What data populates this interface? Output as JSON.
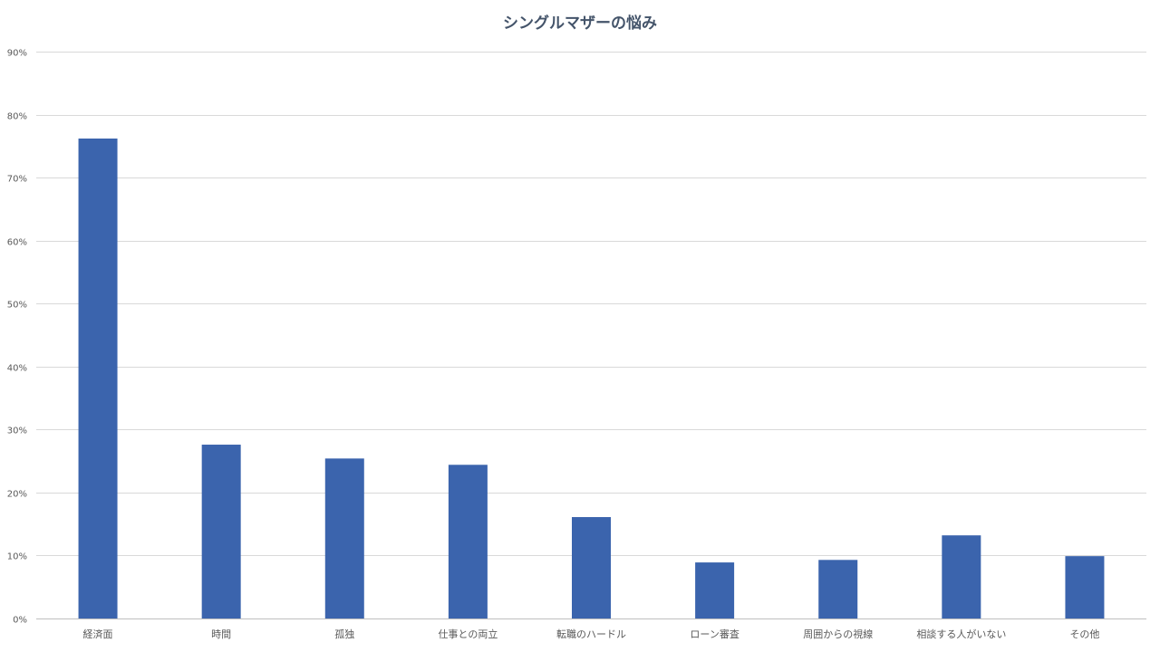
{
  "chart_data": {
    "type": "bar",
    "title": "シングルマザーの悩み",
    "xlabel": "",
    "ylabel": "",
    "categories": [
      "経済面",
      "時間",
      "孤独",
      "仕事との両立",
      "転職のハードル",
      "ローン審査",
      "周囲からの視線",
      "相談する人がいない",
      "その他"
    ],
    "values": [
      76.2,
      27.6,
      25.4,
      24.4,
      16.1,
      8.9,
      9.3,
      13.2,
      9.9
    ],
    "ylim": [
      0,
      90
    ],
    "yticks": [
      "0%",
      "10%",
      "20%",
      "30%",
      "40%",
      "50%",
      "60%",
      "70%",
      "80%",
      "90%"
    ],
    "grid": true,
    "legend": "none",
    "bar_color": "#3b64ad"
  }
}
